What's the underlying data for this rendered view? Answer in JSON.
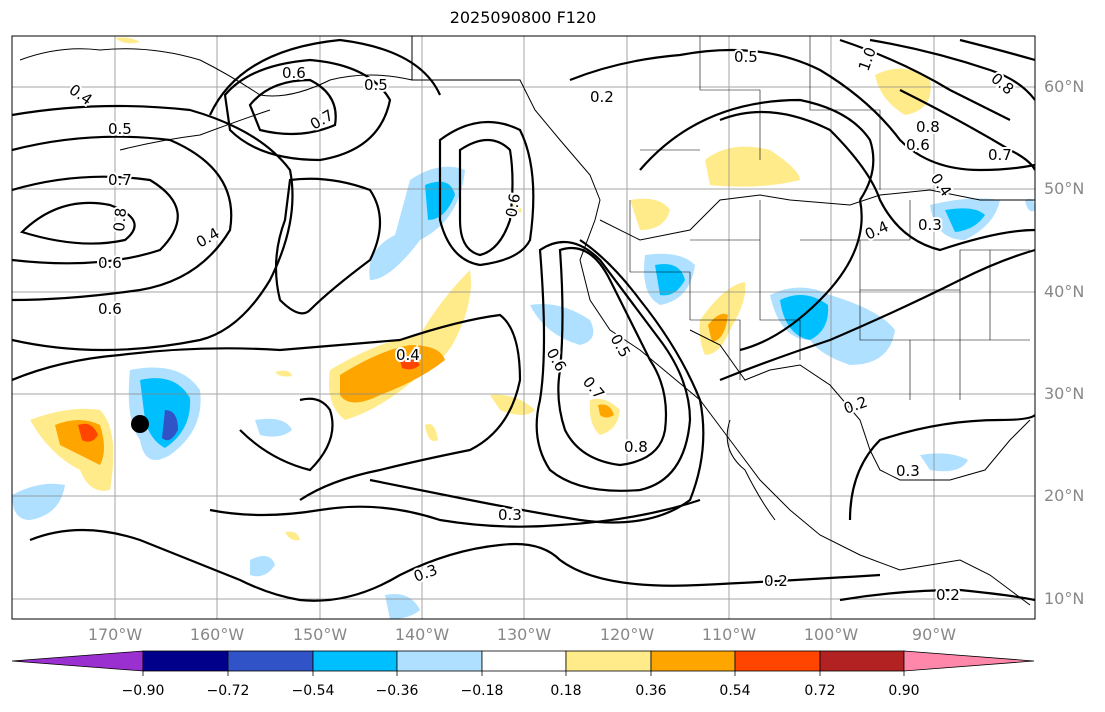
{
  "title": "2025090800 F120",
  "lat_labels": [
    "60°N",
    "50°N",
    "40°N",
    "30°N",
    "20°N",
    "10°N"
  ],
  "lon_labels": [
    "170°W",
    "160°W",
    "150°W",
    "140°W",
    "130°W",
    "120°W",
    "110°W",
    "100°W",
    "90°W"
  ],
  "contour_labels": [
    {
      "text": "0.4"
    },
    {
      "text": "0.5"
    },
    {
      "text": "0.7"
    },
    {
      "text": "0.8"
    },
    {
      "text": "0.6"
    },
    {
      "text": "0.6"
    },
    {
      "text": "0.6"
    },
    {
      "text": "0.7"
    },
    {
      "text": "0.5"
    },
    {
      "text": "0.4"
    },
    {
      "text": "0.6"
    },
    {
      "text": "0.4"
    },
    {
      "text": "0.2"
    },
    {
      "text": "0.5"
    },
    {
      "text": "1.0"
    },
    {
      "text": "0.8"
    },
    {
      "text": "0.6"
    },
    {
      "text": "0.7"
    },
    {
      "text": "0.8"
    },
    {
      "text": "0.4"
    },
    {
      "text": "0.4"
    },
    {
      "text": "0.3"
    },
    {
      "text": "0.6"
    },
    {
      "text": "0.5"
    },
    {
      "text": "0.7"
    },
    {
      "text": "0.8"
    },
    {
      "text": "0.2"
    },
    {
      "text": "0.3"
    },
    {
      "text": "0.3"
    },
    {
      "text": "0.3"
    },
    {
      "text": "0.2"
    },
    {
      "text": "0.2"
    }
  ],
  "colorbar": {
    "ticks": [
      "−0.90",
      "−0.72",
      "−0.54",
      "−0.36",
      "−0.18",
      "0.18",
      "0.36",
      "0.54",
      "0.72",
      "0.90"
    ],
    "colors": [
      "#9b30d0",
      "#00008b",
      "#3153c8",
      "#00bfff",
      "#b0e0ff",
      "#ffffff",
      "#ffeb8a",
      "#ffa500",
      "#ff4500",
      "#b22222",
      "#ff88aa"
    ]
  },
  "marker": {
    "name": "black-dot"
  }
}
